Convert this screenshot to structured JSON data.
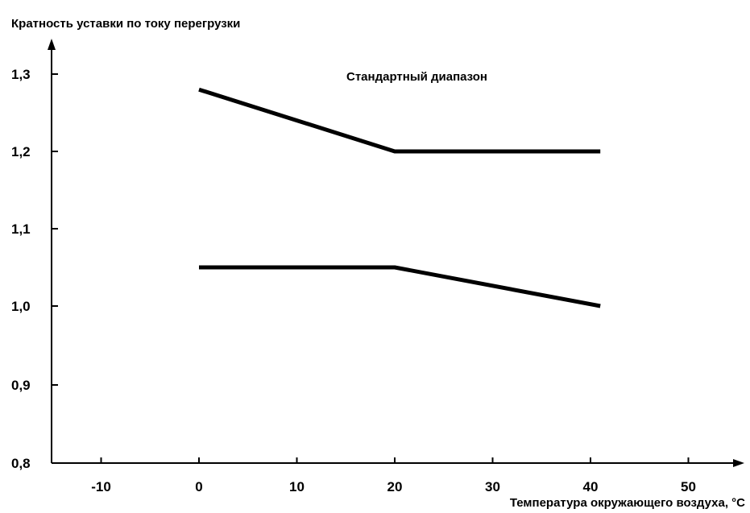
{
  "chart_data": {
    "type": "line",
    "title": "",
    "ylabel": "Кратность уставки по току перегрузки",
    "xlabel": "Температура окружающего воздуха, °С",
    "annotation": "Стандартный диапазон",
    "x_ticks": [
      -10,
      0,
      10,
      20,
      30,
      40,
      50
    ],
    "x_tick_labels": [
      "-10",
      "0",
      "10",
      "20",
      "30",
      "40",
      "50"
    ],
    "y_tick_labels": [
      "1,3",
      "1,2",
      "1,1",
      "1,0",
      "0,9",
      "0,8"
    ],
    "y_tick_values": [
      1.3,
      1.2,
      1.1,
      1.0,
      0.9,
      0.8
    ],
    "xlim": [
      -15,
      55
    ],
    "ylim": [
      0.8,
      1.3
    ],
    "grid": false,
    "legend": "none",
    "series": [
      {
        "x": [
          0,
          20,
          41
        ],
        "y": [
          1.28,
          1.2,
          1.2
        ]
      },
      {
        "x": [
          0,
          20,
          41
        ],
        "y": [
          1.05,
          1.05,
          1.0
        ]
      }
    ],
    "line_color": "#000000"
  }
}
